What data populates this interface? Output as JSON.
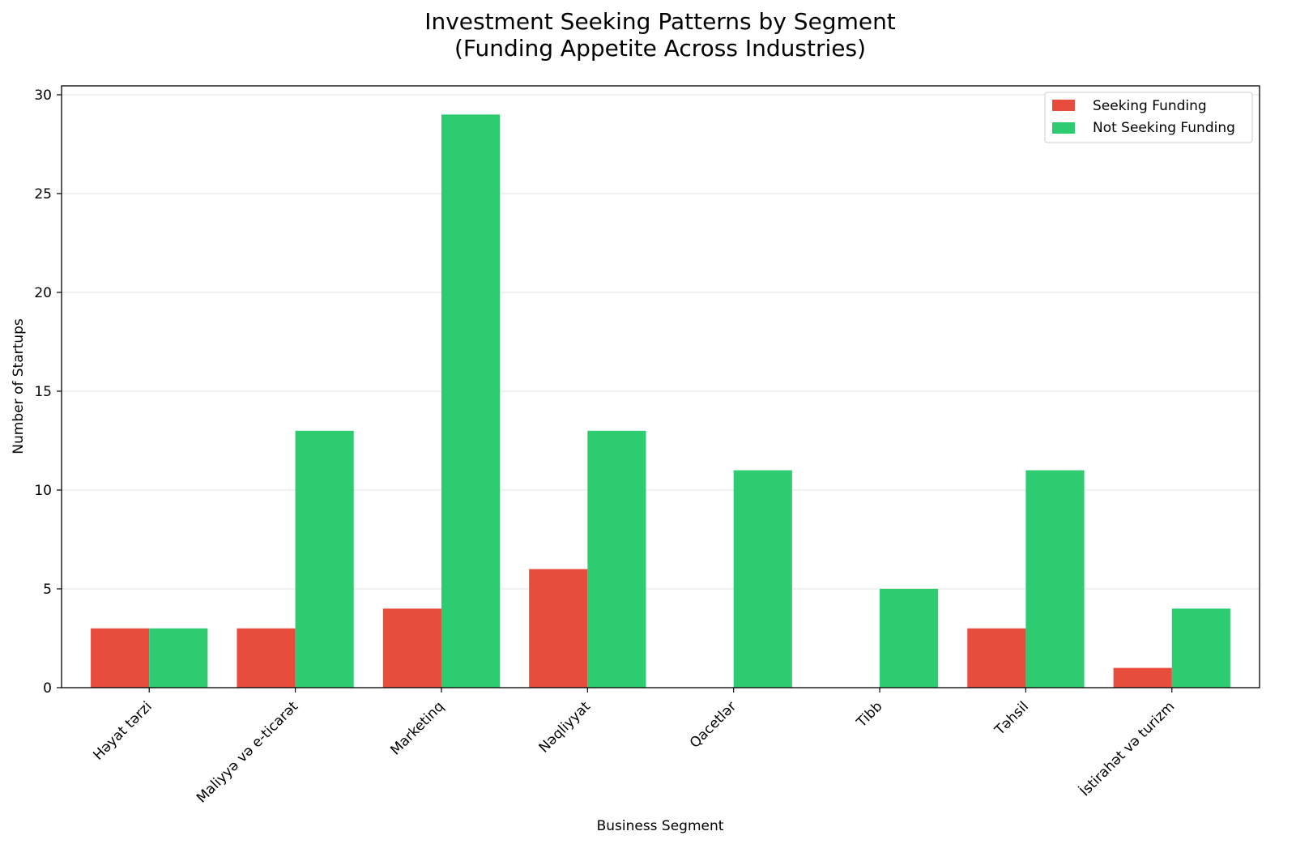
{
  "chart_data": {
    "type": "bar",
    "title_line1": "Investment Seeking Patterns by Segment",
    "title_line2": "(Funding Appetite Across Industries)",
    "xlabel": "Business Segment",
    "ylabel": "Number of Startups",
    "categories": [
      "Həyat tərzi",
      "Maliyyə və e-ticarət",
      "Marketinq",
      "Nəqliyyat",
      "Qacetlər",
      "Tibb",
      "Təhsil",
      "İstirahət və turizm"
    ],
    "series": [
      {
        "name": "Seeking Funding",
        "color": "#e74c3c",
        "values": [
          3,
          3,
          4,
          6,
          0,
          0,
          3,
          1
        ]
      },
      {
        "name": "Not Seeking Funding",
        "color": "#2ecc71",
        "values": [
          3,
          13,
          29,
          13,
          11,
          5,
          11,
          4
        ]
      }
    ],
    "ylim": [
      0,
      30.45
    ],
    "yticks": [
      0,
      5,
      10,
      15,
      20,
      25,
      30
    ],
    "grid": "y",
    "legend_position": "top-right"
  }
}
